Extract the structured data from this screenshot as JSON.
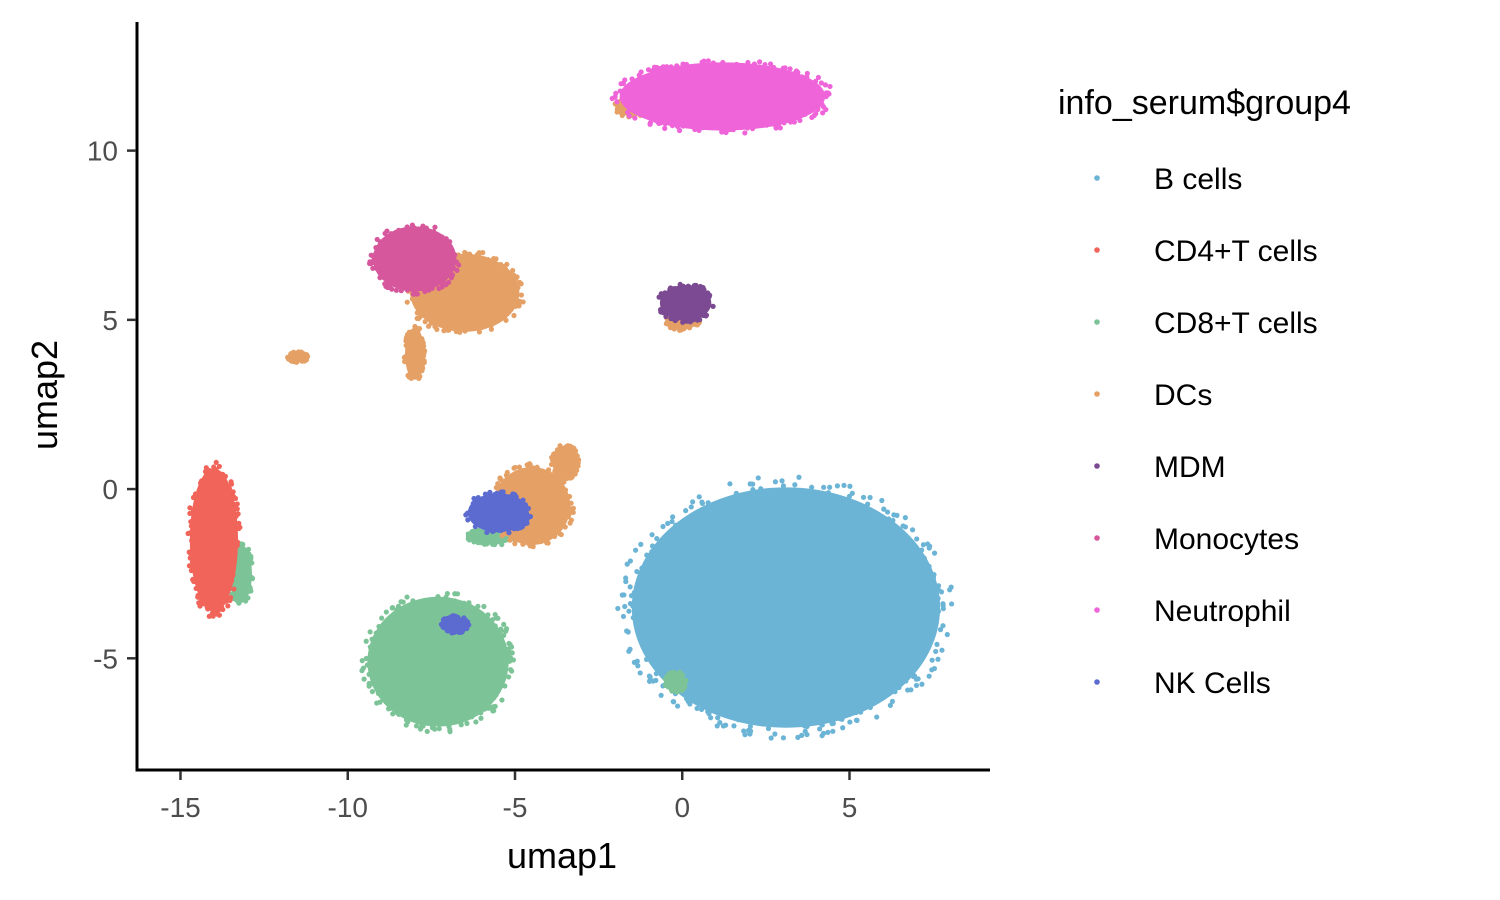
{
  "chart_data": {
    "type": "scatter",
    "xlabel": "umap1",
    "ylabel": "umap2",
    "xlim": [
      -16.3,
      9.2
    ],
    "ylim": [
      -8.3,
      13.8
    ],
    "x_ticks": [
      -15,
      -10,
      -5,
      0,
      5
    ],
    "x_tick_labels": [
      "-15",
      "-10",
      "-5",
      "0",
      "5"
    ],
    "y_ticks": [
      -5,
      0,
      5,
      10
    ],
    "y_tick_labels": [
      "-5",
      "0",
      "5",
      "10"
    ],
    "grid": false,
    "legend": {
      "title": "info_serum$group4",
      "position": "right",
      "entries": [
        "B cells",
        "CD4+T cells",
        "CD8+T cells",
        "DCs",
        "MDM",
        "Monocytes",
        "Neutrophil",
        "NK Cells"
      ]
    },
    "series": [
      {
        "name": "B cells",
        "color": "#6BB4D6",
        "clusters": [
          {
            "cx": 3.1,
            "cy": -3.5,
            "rx": 4.8,
            "ry": 3.7
          }
        ]
      },
      {
        "name": "CD4+T cells",
        "color": "#F0645A",
        "clusters": [
          {
            "cx": -14.0,
            "cy": -1.5,
            "rx": 0.75,
            "ry": 2.2
          }
        ]
      },
      {
        "name": "CD8+T cells",
        "color": "#7CC497",
        "clusters": [
          {
            "cx": -7.3,
            "cy": -5.1,
            "rx": 2.2,
            "ry": 2.0
          },
          {
            "cx": -13.2,
            "cy": -2.5,
            "rx": 0.35,
            "ry": 0.9
          },
          {
            "cx": -5.7,
            "cy": -1.4,
            "rx": 0.7,
            "ry": 0.25
          },
          {
            "cx": -0.2,
            "cy": -5.7,
            "rx": 0.3,
            "ry": 0.3
          }
        ]
      },
      {
        "name": "DCs",
        "color": "#E5A066",
        "clusters": [
          {
            "cx": -6.5,
            "cy": 5.8,
            "rx": 1.7,
            "ry": 1.2
          },
          {
            "cx": -4.5,
            "cy": -0.5,
            "rx": 1.2,
            "ry": 1.2
          },
          {
            "cx": -3.5,
            "cy": 0.8,
            "rx": 0.4,
            "ry": 0.5
          },
          {
            "cx": -1.5,
            "cy": 11.3,
            "rx": 0.5,
            "ry": 0.3
          },
          {
            "cx": -11.5,
            "cy": 3.9,
            "rx": 0.3,
            "ry": 0.15
          },
          {
            "cx": 0.0,
            "cy": 5.0,
            "rx": 0.5,
            "ry": 0.3
          },
          {
            "cx": -8.0,
            "cy": 4.0,
            "rx": 0.3,
            "ry": 0.8
          }
        ]
      },
      {
        "name": "MDM",
        "color": "#7B4A93",
        "clusters": [
          {
            "cx": 0.1,
            "cy": 5.5,
            "rx": 0.8,
            "ry": 0.55
          }
        ]
      },
      {
        "name": "Monocytes",
        "color": "#D6579C",
        "clusters": [
          {
            "cx": -8.0,
            "cy": 6.8,
            "rx": 1.3,
            "ry": 1.0
          }
        ]
      },
      {
        "name": "Neutrophil",
        "color": "#EF64D9",
        "clusters": [
          {
            "cx": 1.2,
            "cy": 11.6,
            "rx": 3.2,
            "ry": 1.05
          }
        ]
      },
      {
        "name": "NK Cells",
        "color": "#5C6BD0",
        "clusters": [
          {
            "cx": -5.5,
            "cy": -0.7,
            "rx": 0.95,
            "ry": 0.6
          },
          {
            "cx": -6.8,
            "cy": -4.0,
            "rx": 0.4,
            "ry": 0.25
          }
        ]
      }
    ]
  }
}
